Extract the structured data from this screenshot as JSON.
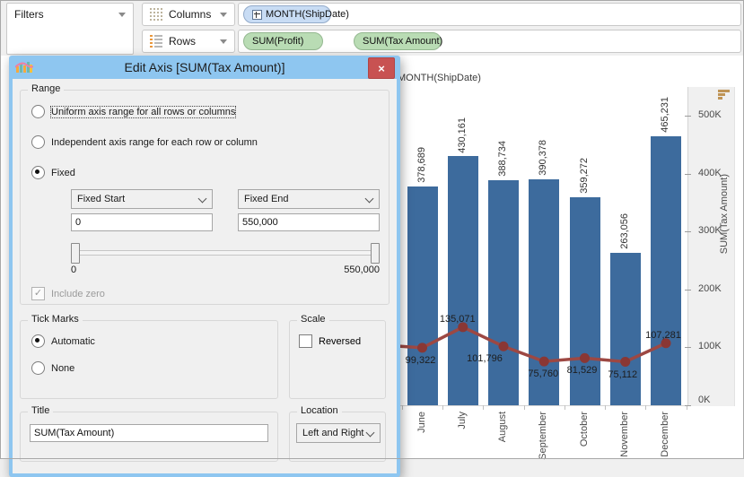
{
  "shelves": {
    "filters_label": "Filters",
    "columns_label": "Columns",
    "rows_label": "Rows",
    "columns_pills": [
      {
        "label": "MONTH(ShipDate)"
      }
    ],
    "rows_pills": [
      {
        "label": "SUM(Profit)"
      },
      {
        "label": "SUM(Tax Amount)"
      }
    ]
  },
  "dialog": {
    "title": "Edit Axis [SUM(Tax Amount)]",
    "close_glyph": "×",
    "range": {
      "legend": "Range",
      "options": [
        {
          "label": "Uniform axis range for all rows or columns",
          "selected": false,
          "focused": true
        },
        {
          "label": "Independent axis range for each row or column",
          "selected": false
        },
        {
          "label": "Fixed",
          "selected": true
        }
      ],
      "fixed_start_label": "Fixed Start",
      "fixed_end_label": "Fixed End",
      "fixed_start_value": "0",
      "fixed_end_value": "550,000",
      "slider_min_label": "0",
      "slider_max_label": "550,000",
      "include_zero_label": "Include zero",
      "include_zero_checked": true,
      "include_zero_disabled": true,
      "check_glyph": "✓"
    },
    "tick_marks": {
      "legend": "Tick Marks",
      "options": [
        {
          "label": "Automatic",
          "selected": true
        },
        {
          "label": "None",
          "selected": false
        }
      ]
    },
    "scale": {
      "legend": "Scale",
      "reversed_label": "Reversed",
      "reversed_checked": false
    },
    "title_group": {
      "legend": "Title",
      "value": "SUM(Tax Amount)"
    },
    "location_group": {
      "legend": "Location",
      "value": "Left and Right"
    }
  },
  "chart_data": {
    "type": "bar+line dual axis",
    "x_header": "MONTH(ShipDate)",
    "categories": [
      "June",
      "July",
      "August",
      "September",
      "October",
      "November",
      "December"
    ],
    "series": [
      {
        "name": "SUM(Profit)",
        "mark": "bar",
        "color": "#3d6b9d",
        "values": [
          378689,
          430161,
          388734,
          390378,
          359272,
          263056,
          465231
        ],
        "labels": [
          "378,689",
          "430,161",
          "388,734",
          "390,378",
          "359,272",
          "263,056",
          "465,231"
        ]
      },
      {
        "name": "SUM(Tax Amount)",
        "mark": "line",
        "color": "#9d4843",
        "marker_color": "#8a3734",
        "values": [
          99322,
          135071,
          101796,
          75760,
          81529,
          75112,
          107281
        ],
        "labels": [
          "99,322",
          "135,071",
          "101,796",
          "75,760",
          "81,529",
          "75,112",
          "107,281"
        ]
      }
    ],
    "y_axis": {
      "title": "SUM(Tax Amount)",
      "position": "right",
      "range": [
        0,
        550000
      ],
      "tick_values": [
        0,
        100000,
        200000,
        300000,
        400000,
        500000
      ],
      "tick_labels": [
        "0K",
        "100K",
        "200K",
        "300K",
        "400K",
        "500K"
      ],
      "grid": false
    }
  }
}
